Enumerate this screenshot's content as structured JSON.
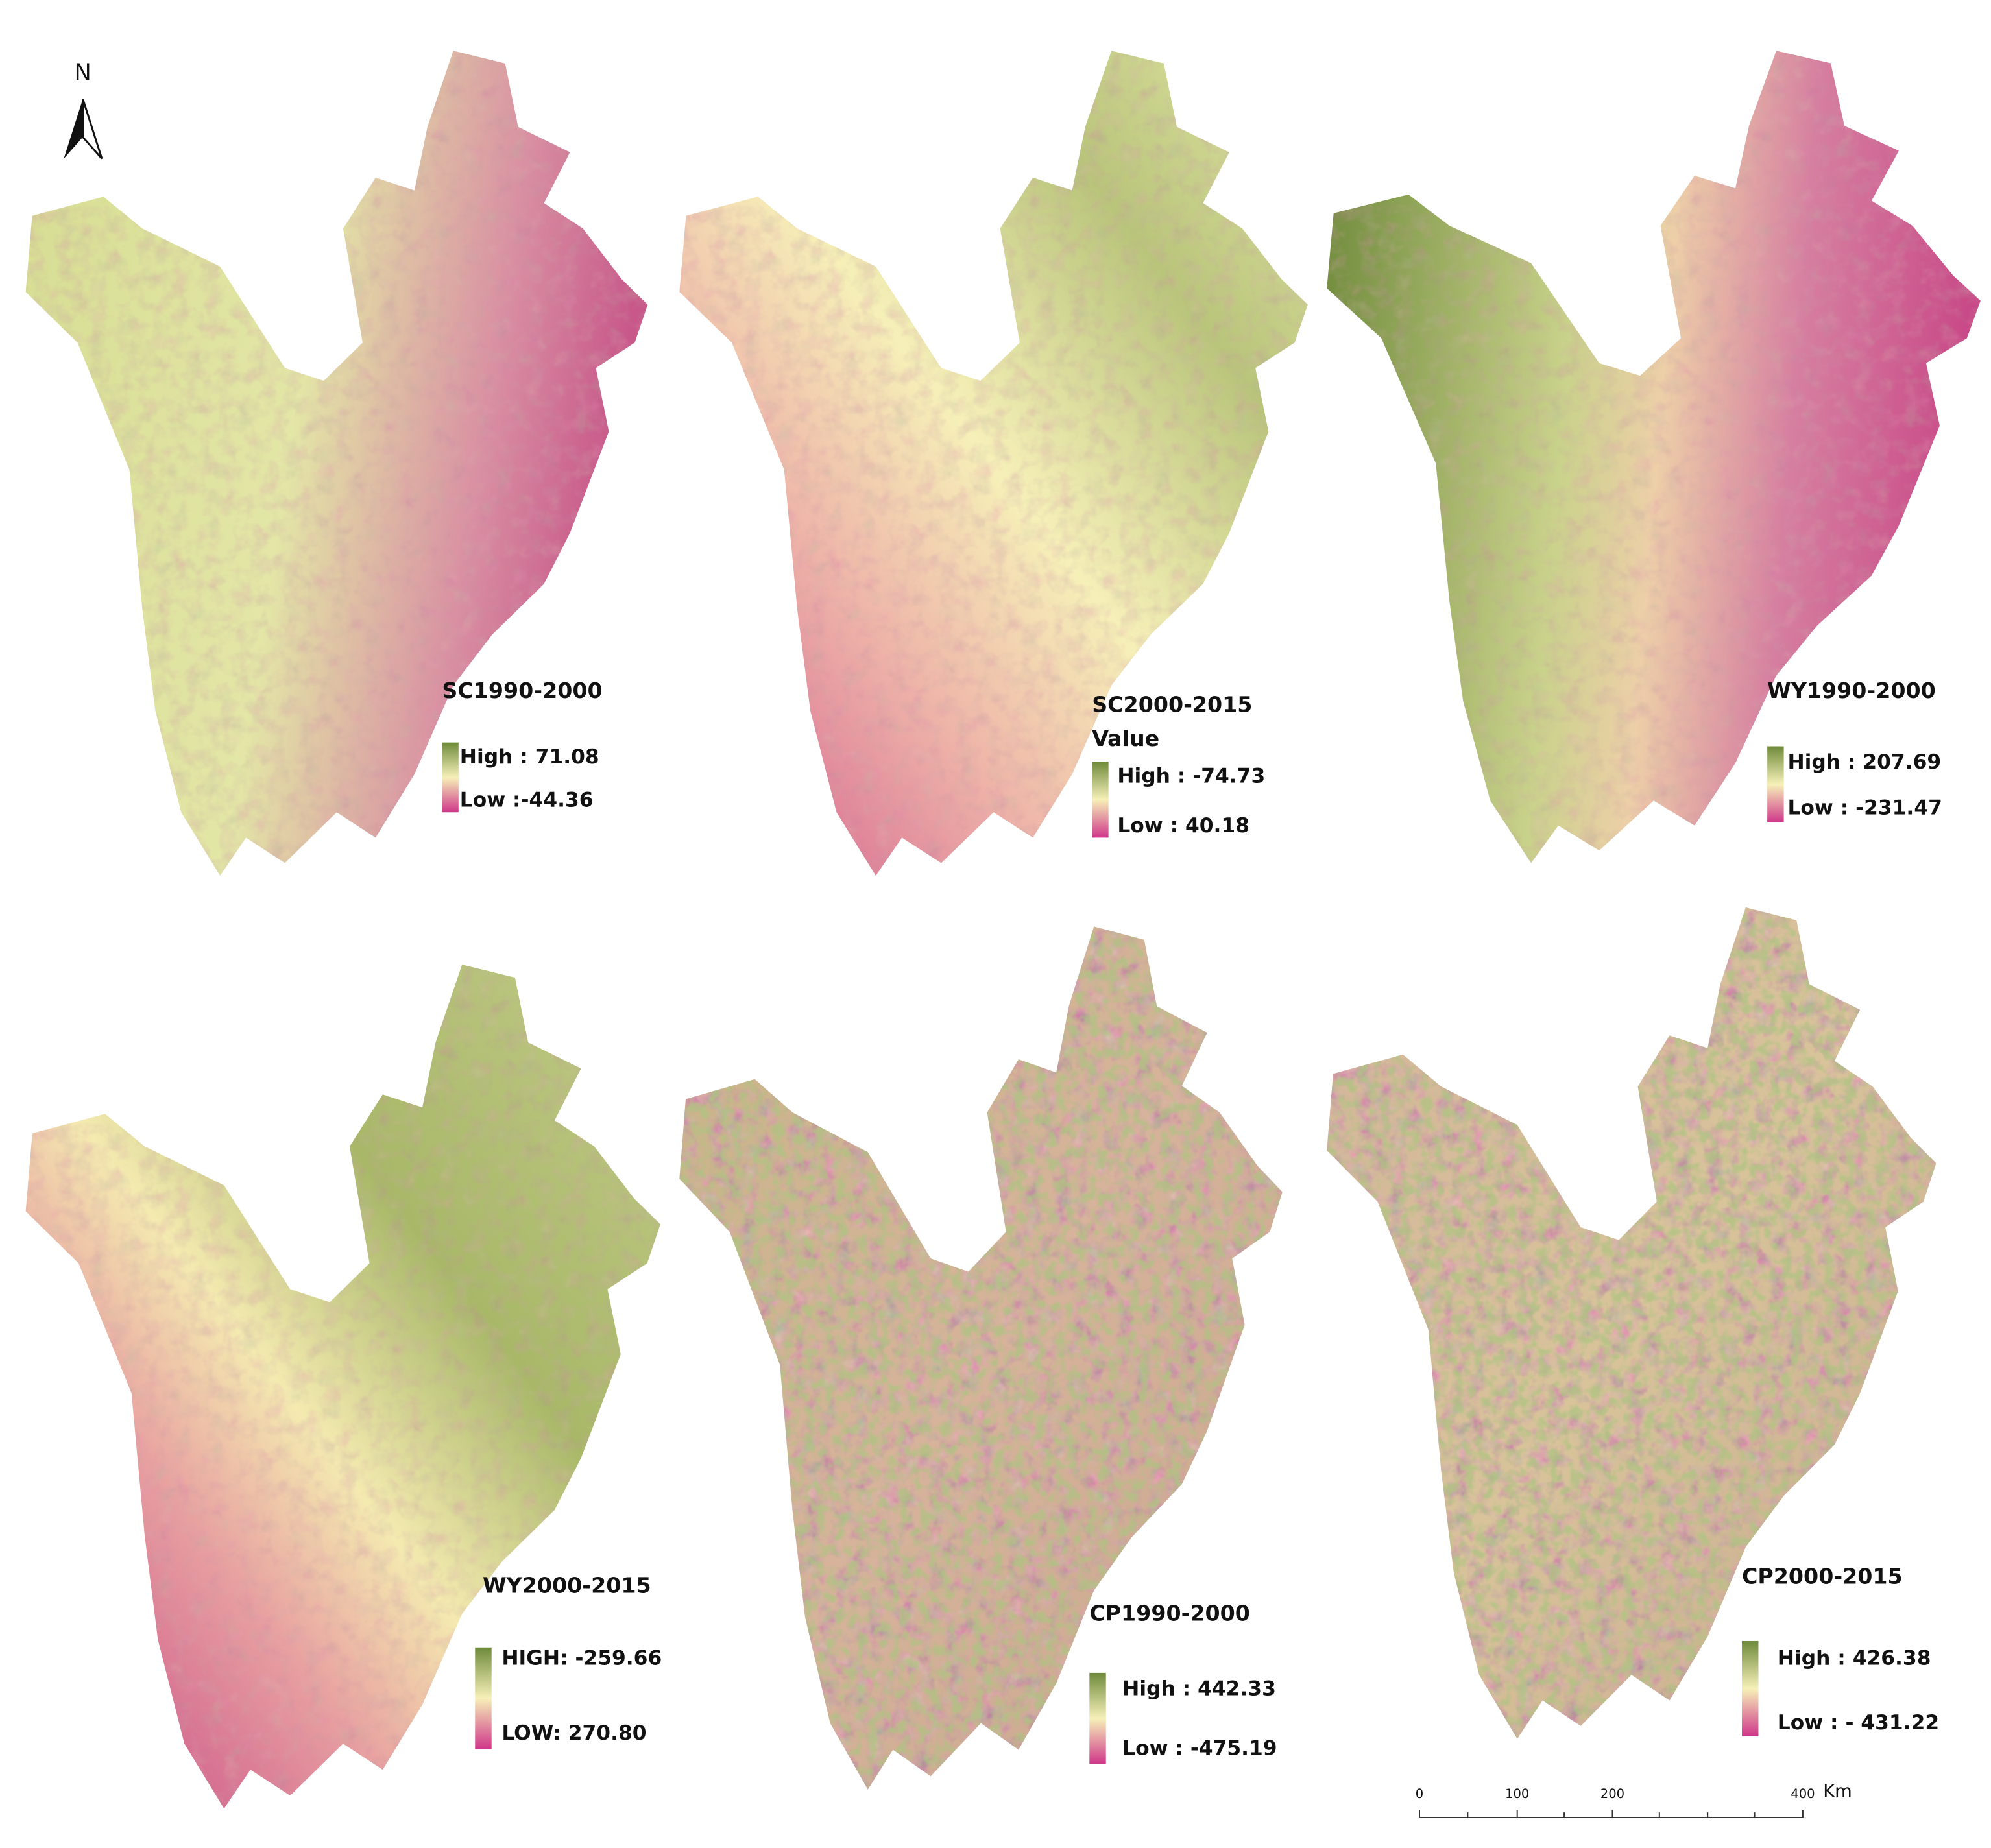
{
  "north_label": "N",
  "panels": [
    {
      "title": "SC1990-2000",
      "legend": {
        "high": "High : 71.08",
        "low": "Low :-44.36"
      }
    },
    {
      "title": "SC2000-2015",
      "subtitle": "Value",
      "legend": {
        "high": "High : -74.73",
        "low": "Low : 40.18"
      }
    },
    {
      "title": "WY1990-2000",
      "legend": {
        "high": "High : 207.69",
        "low": "Low : -231.47"
      }
    },
    {
      "title": "WY2000-2015",
      "legend": {
        "high": "HIGH: -259.66",
        "low": "LOW: 270.80"
      }
    },
    {
      "title": "CP1990-2000",
      "legend": {
        "high": "High : 442.33",
        "low": "Low : -475.19"
      }
    },
    {
      "title": "CP2000-2015",
      "legend": {
        "high": "High : 426.38",
        "low": "Low : - 431.22"
      }
    }
  ],
  "scale_bar": {
    "ticks": [
      "0",
      "100",
      "200",
      "400"
    ],
    "unit": "Km"
  }
}
